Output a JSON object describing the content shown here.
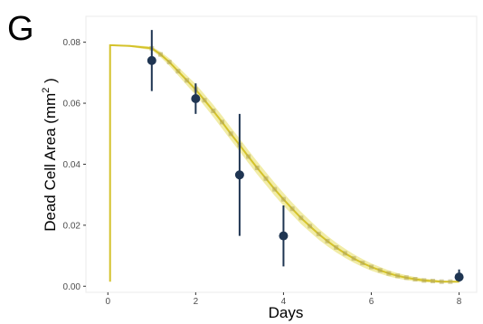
{
  "panel_label": "G",
  "chart_data": {
    "type": "scatter",
    "xlabel": "Days",
    "ylabel_main": "Dead Cell Area (mm",
    "ylabel_sup": "2",
    "ylabel_close": " )",
    "xlim": [
      -0.5,
      8.4
    ],
    "ylim": [
      -0.002,
      0.0885
    ],
    "x_ticks": [
      0,
      2,
      4,
      6,
      8
    ],
    "x_tick_labels": [
      "0",
      "2",
      "4",
      "6",
      "8"
    ],
    "y_ticks": [
      0.0,
      0.02,
      0.04,
      0.06,
      0.08
    ],
    "y_tick_labels": [
      "0.00",
      "0.02",
      "0.04",
      "0.06",
      "0.08"
    ],
    "grid": false,
    "series": [
      {
        "kind": "observed",
        "color": "#1f3552",
        "x": [
          1,
          2,
          3,
          4,
          8
        ],
        "y": [
          0.074,
          0.0615,
          0.0365,
          0.0165,
          0.003
        ],
        "err_low": [
          0.064,
          0.0565,
          0.0165,
          0.0065,
          0.0015
        ],
        "err_high": [
          0.084,
          0.0665,
          0.0565,
          0.0265,
          0.0055
        ]
      },
      {
        "kind": "model",
        "color": "#d4c22a",
        "band_color": "#ece58a",
        "marker_color": "#b0a55a",
        "x": [
          0.05,
          0.05,
          0.1,
          0.5,
          1.0,
          1.2,
          1.4,
          1.6,
          1.8,
          2.0,
          2.2,
          2.4,
          2.6,
          2.8,
          3.0,
          3.2,
          3.4,
          3.6,
          3.8,
          4.0,
          4.2,
          4.4,
          4.6,
          4.8,
          5.0,
          5.2,
          5.4,
          5.6,
          5.8,
          6.0,
          6.2,
          6.4,
          6.6,
          6.8,
          7.0,
          7.2,
          7.4,
          7.6,
          7.8,
          8.0
        ],
        "y": [
          0.0015,
          0.079,
          0.079,
          0.0788,
          0.078,
          0.076,
          0.0735,
          0.0705,
          0.0675,
          0.0645,
          0.061,
          0.0575,
          0.0538,
          0.05,
          0.0463,
          0.0425,
          0.0388,
          0.0353,
          0.0318,
          0.0285,
          0.0254,
          0.0224,
          0.0197,
          0.0171,
          0.0148,
          0.0127,
          0.0108,
          0.0091,
          0.0076,
          0.0063,
          0.0052,
          0.0042,
          0.0034,
          0.0028,
          0.0023,
          0.0019,
          0.0017,
          0.0015,
          0.0015,
          0.0015
        ],
        "band": [
          0.0,
          0.0,
          0.0,
          0.0003,
          0.0006,
          0.0009,
          0.0012,
          0.0014,
          0.0016,
          0.0018,
          0.0019,
          0.002,
          0.0021,
          0.0021,
          0.0021,
          0.0021,
          0.0021,
          0.0021,
          0.0021,
          0.0021,
          0.002,
          0.002,
          0.0019,
          0.0018,
          0.0017,
          0.0016,
          0.0015,
          0.0014,
          0.0013,
          0.0012,
          0.0011,
          0.001,
          0.0009,
          0.0008,
          0.0007,
          0.0006,
          0.0005,
          0.0004,
          0.0003,
          0.0003
        ]
      }
    ]
  }
}
